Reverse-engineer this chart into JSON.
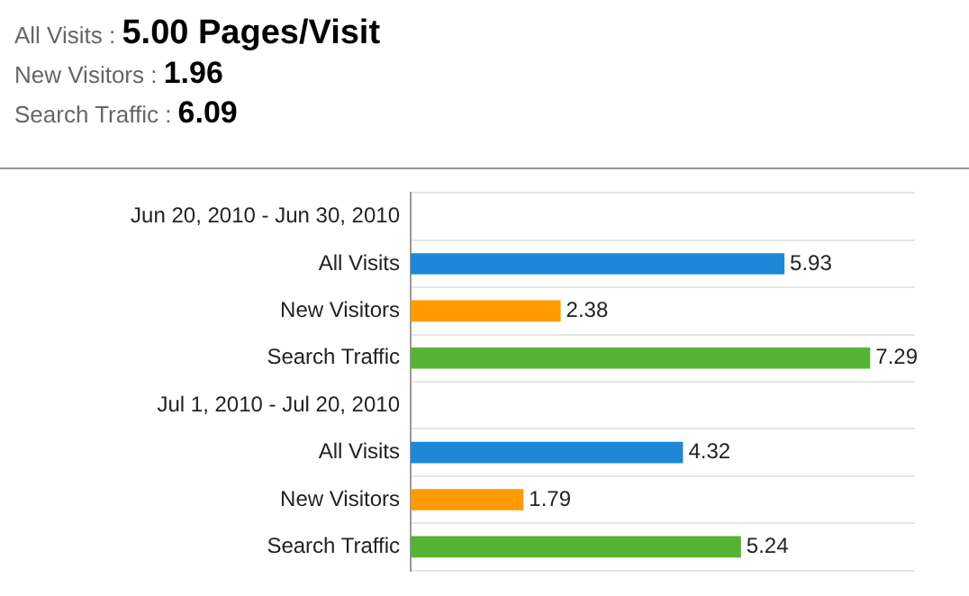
{
  "chart_data": {
    "type": "bar",
    "orientation": "horizontal",
    "annotations": [
      "All Visits : 5.00 Pages/Visit",
      "New Visitors : 1.96",
      "Search Traffic : 6.09"
    ],
    "categories": [
      "Jun 20, 2010 - Jun 30, 2010",
      "All Visits",
      "New Visitors",
      "Search Traffic",
      "Jul 1, 2010 - Jul 20, 2010",
      "All Visits",
      "New Visitors",
      "Search Traffic"
    ],
    "values": [
      null,
      5.93,
      2.38,
      7.29,
      null,
      4.32,
      1.79,
      5.24
    ],
    "colors": [
      "#1e88d8",
      "#1e88d8",
      "#ff9a00",
      "#55b234",
      "#1e88d8",
      "#1e88d8",
      "#ff9a00",
      "#55b234"
    ],
    "data_labels": true,
    "grid": "y"
  }
}
